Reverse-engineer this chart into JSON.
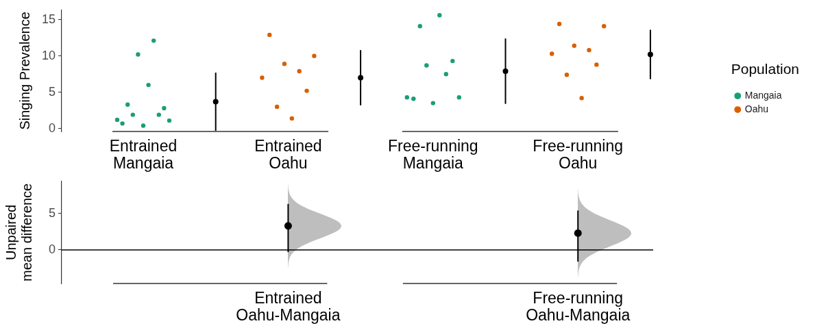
{
  "chart_data": [
    {
      "type": "scatter",
      "categories": [
        "Entrained\nMangaia",
        null,
        "Entrained\nOahu",
        null,
        "Free-running\nMangaia",
        null,
        "Free-running\nOahu",
        null
      ],
      "ylabel": "Singing Prevalence",
      "ylim": [
        -0.4,
        16.3
      ],
      "yticks": [
        0,
        5,
        10,
        15
      ],
      "legend": "right",
      "legend_title": "Population",
      "marker": "circle",
      "series": [
        {
          "name": "Mangaia",
          "color": "#1b9e77",
          "x": [
            "Entrained\nMangaia",
            "Entrained\nMangaia",
            "Entrained\nMangaia",
            "Entrained\nMangaia",
            "Entrained\nMangaia",
            "Entrained\nMangaia",
            "Entrained\nMangaia",
            "Entrained\nMangaia",
            "Entrained\nMangaia",
            "Entrained\nMangaia",
            "Entrained\nMangaia",
            "Free-running\nMangaia",
            "Free-running\nMangaia",
            "Free-running\nMangaia",
            "Free-running\nMangaia",
            "Free-running\nMangaia",
            "Free-running\nMangaia",
            "Free-running\nMangaia",
            "Free-running\nMangaia",
            "Free-running\nMangaia"
          ],
          "values": [
            1.2,
            0.7,
            3.3,
            1.9,
            10.2,
            0.4,
            6.0,
            12.1,
            1.9,
            2.8,
            1.1,
            4.3,
            4.1,
            14.1,
            8.7,
            3.5,
            15.6,
            7.5,
            9.3,
            4.3
          ]
        },
        {
          "name": "Oahu",
          "color": "#d95f02",
          "x": [
            "Entrained\nOahu",
            "Entrained\nOahu",
            "Entrained\nOahu",
            "Entrained\nOahu",
            "Entrained\nOahu",
            "Entrained\nOahu",
            "Entrained\nOahu",
            "Entrained\nOahu",
            "Free-running\nOahu",
            "Free-running\nOahu",
            "Free-running\nOahu",
            "Free-running\nOahu",
            "Free-running\nOahu",
            "Free-running\nOahu",
            "Free-running\nOahu",
            "Free-running\nOahu"
          ],
          "values": [
            7.0,
            12.9,
            3.0,
            8.9,
            1.4,
            7.9,
            5.2,
            10.0,
            10.3,
            14.4,
            7.4,
            11.4,
            4.2,
            10.8,
            8.8,
            14.1
          ]
        },
        {
          "color": "#000000",
          "values": [
            null,
            3.7,
            null,
            7.0,
            null,
            7.9,
            null,
            10.2
          ],
          "errors": [
            null,
            4.0,
            null,
            3.8,
            null,
            4.5,
            null,
            3.4
          ]
        }
      ]
    },
    {
      "type": "scatter",
      "categories": [
        null,
        "Entrained\nOahu-Mangaia",
        null,
        "Free-running\nOahu-Mangaia"
      ],
      "ylabel": "Unpaired\nmean difference",
      "ylim": [
        -4.6,
        9.4
      ],
      "yticks": [
        0,
        5
      ],
      "values": [
        null,
        3.3,
        null,
        2.3
      ],
      "errors": [
        null,
        [
          -0.3,
          6.3
        ],
        null,
        [
          -1.6,
          5.4
        ]
      ],
      "color": "#000000",
      "marker": "circle",
      "ref_lines": [
        {
          "axis": "y",
          "value": 0
        }
      ]
    }
  ]
}
